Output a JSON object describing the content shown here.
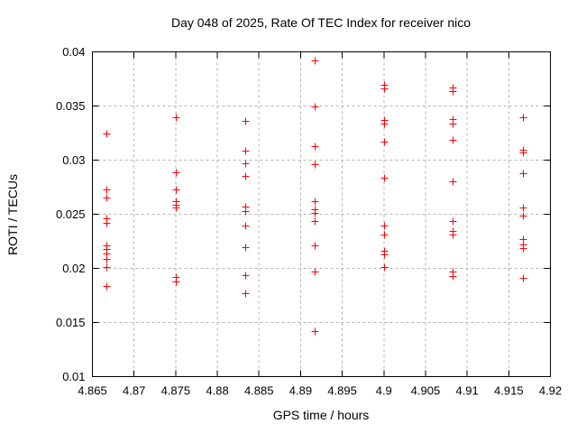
{
  "title": "Day 048 of 2025, Rate Of TEC Index for receiver nico",
  "chart_data": {
    "type": "scatter",
    "title": "Day 048 of 2025, Rate Of TEC Index for receiver nico",
    "xlabel": "GPS time / hours",
    "ylabel": "ROTI / TECUs",
    "xlim": [
      4.865,
      4.92
    ],
    "ylim": [
      0.01,
      0.04
    ],
    "xtick_values": [
      4.865,
      4.87,
      4.875,
      4.88,
      4.885,
      4.89,
      4.895,
      4.9,
      4.905,
      4.91,
      4.915,
      4.92
    ],
    "xtick_labels": [
      "4.865",
      "4.87",
      "4.875",
      "4.88",
      "4.885",
      "4.89",
      "4.895",
      "4.9",
      "4.905",
      "4.91",
      "4.915",
      "4.92"
    ],
    "ytick_values": [
      0.01,
      0.015,
      0.02,
      0.025,
      0.03,
      0.035,
      0.04
    ],
    "ytick_labels": [
      "0.01",
      "0.015",
      "0.02",
      "0.025",
      "0.03",
      "0.035",
      "0.04"
    ],
    "grid": true,
    "legend_position": "none",
    "marker": "plus",
    "marker_color": "#ff0000",
    "grid_color": "#b3b3b3",
    "border_color": "#000000",
    "series": [
      {
        "name": "ROTI",
        "points": [
          [
            4.8667,
            0.0325
          ],
          [
            4.8667,
            0.0273
          ],
          [
            4.8667,
            0.0265
          ],
          [
            4.8667,
            0.0246
          ],
          [
            4.8667,
            0.0242
          ],
          [
            4.8667,
            0.0221
          ],
          [
            4.8667,
            0.0218
          ],
          [
            4.8667,
            0.0214
          ],
          [
            4.8667,
            0.0209
          ],
          [
            4.8667,
            0.0201
          ],
          [
            4.8667,
            0.0184
          ],
          [
            4.875,
            0.034
          ],
          [
            4.875,
            0.0289
          ],
          [
            4.875,
            0.0273
          ],
          [
            4.875,
            0.0262
          ],
          [
            4.875,
            0.0259
          ],
          [
            4.875,
            0.0256
          ],
          [
            4.875,
            0.0192
          ],
          [
            4.875,
            0.0188
          ],
          [
            4.8833,
            0.0336
          ],
          [
            4.8833,
            0.0309
          ],
          [
            4.8833,
            0.0297
          ],
          [
            4.8833,
            0.0285
          ],
          [
            4.8833,
            0.0257
          ],
          [
            4.8833,
            0.0253
          ],
          [
            4.8833,
            0.024
          ],
          [
            4.8833,
            0.022
          ],
          [
            4.8833,
            0.0194
          ],
          [
            4.8833,
            0.0177
          ],
          [
            4.8917,
            0.0392
          ],
          [
            4.8917,
            0.035
          ],
          [
            4.8917,
            0.0313
          ],
          [
            4.8917,
            0.0296
          ],
          [
            4.8917,
            0.0262
          ],
          [
            4.8917,
            0.0255
          ],
          [
            4.8917,
            0.0251
          ],
          [
            4.8917,
            0.0244
          ],
          [
            4.8917,
            0.0221
          ],
          [
            4.8917,
            0.0197
          ],
          [
            4.8917,
            0.0142
          ],
          [
            4.9,
            0.037
          ],
          [
            4.9,
            0.0366
          ],
          [
            4.9,
            0.0337
          ],
          [
            4.9,
            0.0334
          ],
          [
            4.9,
            0.0317
          ],
          [
            4.9,
            0.0284
          ],
          [
            4.9,
            0.024
          ],
          [
            4.9,
            0.0231
          ],
          [
            4.9,
            0.0216
          ],
          [
            4.9,
            0.0213
          ],
          [
            4.9,
            0.0201
          ],
          [
            4.9083,
            0.0367
          ],
          [
            4.9083,
            0.0364
          ],
          [
            4.9083,
            0.0338
          ],
          [
            4.9083,
            0.0334
          ],
          [
            4.9083,
            0.0319
          ],
          [
            4.9083,
            0.028
          ],
          [
            4.9083,
            0.0244
          ],
          [
            4.9083,
            0.0235
          ],
          [
            4.9083,
            0.0231
          ],
          [
            4.9083,
            0.0197
          ],
          [
            4.9083,
            0.0193
          ],
          [
            4.9167,
            0.034
          ],
          [
            4.9167,
            0.031
          ],
          [
            4.9167,
            0.0307
          ],
          [
            4.9167,
            0.0288
          ],
          [
            4.9167,
            0.0256
          ],
          [
            4.9167,
            0.0249
          ],
          [
            4.9167,
            0.0227
          ],
          [
            4.9167,
            0.0222
          ],
          [
            4.9167,
            0.0219
          ],
          [
            4.9167,
            0.0191
          ]
        ]
      }
    ]
  }
}
